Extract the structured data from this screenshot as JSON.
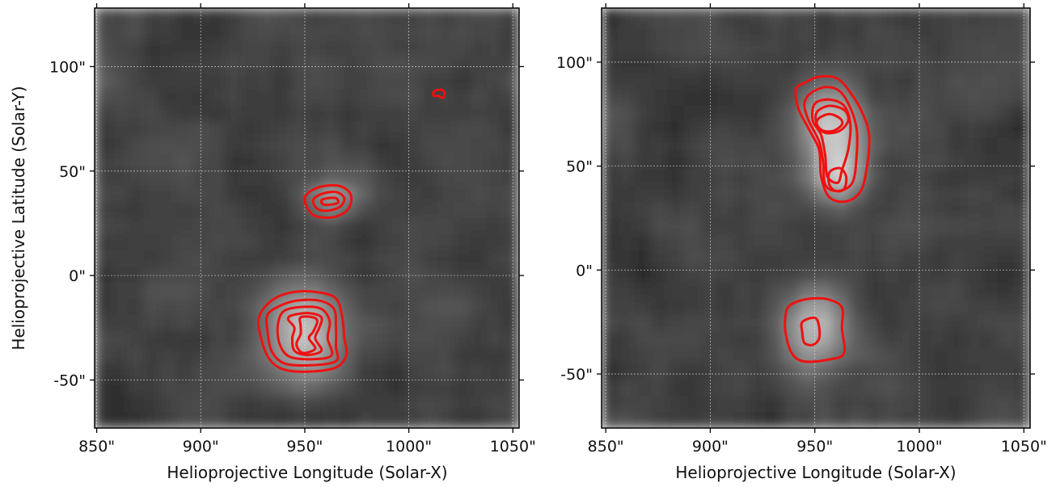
{
  "chart_data": [
    {
      "type": "heatmap",
      "xlabel": "Helioprojective Longitude (Solar-X)",
      "ylabel": "Helioprojective Latitude (Solar-Y)",
      "xlim": [
        849,
        1053
      ],
      "ylim": [
        -73,
        128
      ],
      "x_ticks": [
        850,
        900,
        950,
        1000,
        1050
      ],
      "y_ticks": [
        -50,
        0,
        50,
        100
      ],
      "x_tick_labels": [
        "850\"",
        "900\"",
        "950\"",
        "1000\"",
        "1050\""
      ],
      "y_tick_labels": [
        "-50\"",
        "0\"",
        "50\"",
        "100\""
      ],
      "grid": true,
      "colormap": "gray",
      "contour_color": "#ee1111",
      "sources": [
        {
          "x": 950,
          "y": -27,
          "sx": 13,
          "sy": 16,
          "peak": 1.0
        },
        {
          "x": 962,
          "y": 37,
          "sx": 9,
          "sy": 6,
          "peak": 0.75
        }
      ],
      "contours": [
        [
          [
            934,
            -12
          ],
          [
            944,
            -8
          ],
          [
            956,
            -8
          ],
          [
            965,
            -11
          ],
          [
            968,
            -20
          ],
          [
            969,
            -30
          ],
          [
            970,
            -38
          ],
          [
            965,
            -44
          ],
          [
            952,
            -46
          ],
          [
            940,
            -45
          ],
          [
            933,
            -40
          ],
          [
            929,
            -30
          ],
          [
            928,
            -20
          ]
        ],
        [
          [
            937,
            -15
          ],
          [
            946,
            -12
          ],
          [
            957,
            -12
          ],
          [
            964,
            -16
          ],
          [
            965,
            -25
          ],
          [
            965,
            -34
          ],
          [
            965,
            -41
          ],
          [
            952,
            -43
          ],
          [
            940,
            -42
          ],
          [
            934,
            -36
          ],
          [
            932,
            -26
          ],
          [
            932,
            -19
          ]
        ],
        [
          [
            940,
            -17
          ],
          [
            949,
            -15
          ],
          [
            958,
            -16
          ],
          [
            962,
            -22
          ],
          [
            961,
            -30
          ],
          [
            963,
            -38
          ],
          [
            955,
            -40
          ],
          [
            943,
            -39
          ],
          [
            938,
            -33
          ],
          [
            937,
            -24
          ]
        ],
        [
          [
            944,
            -19
          ],
          [
            952,
            -18
          ],
          [
            958,
            -20
          ],
          [
            957,
            -25
          ],
          [
            955,
            -30
          ],
          [
            958,
            -36
          ],
          [
            951,
            -38
          ],
          [
            945,
            -36
          ],
          [
            944,
            -30
          ],
          [
            945,
            -25
          ],
          [
            942,
            -21
          ]
        ],
        [
          [
            948,
            -20
          ],
          [
            954,
            -20
          ],
          [
            956,
            -22
          ],
          [
            954,
            -27
          ],
          [
            952,
            -30
          ],
          [
            955,
            -35
          ],
          [
            949,
            -37
          ],
          [
            946,
            -33
          ],
          [
            948,
            -28
          ],
          [
            948,
            -24
          ]
        ],
        [
          [
            950,
            37
          ],
          [
            956,
            42
          ],
          [
            966,
            43
          ],
          [
            972,
            39
          ],
          [
            971,
            32
          ],
          [
            964,
            28
          ],
          [
            954,
            29
          ]
        ],
        [
          [
            954,
            36
          ],
          [
            958,
            39
          ],
          [
            965,
            40
          ],
          [
            969,
            37
          ],
          [
            967,
            33
          ],
          [
            961,
            31
          ],
          [
            956,
            32
          ]
        ],
        [
          [
            958,
            36
          ],
          [
            961,
            37
          ],
          [
            965,
            37
          ],
          [
            966,
            35
          ],
          [
            963,
            34
          ],
          [
            959,
            34
          ]
        ],
        [
          [
            1012,
            88
          ],
          [
            1015,
            89
          ],
          [
            1017,
            88
          ],
          [
            1017,
            86
          ],
          [
            1016,
            85
          ],
          [
            1014,
            86
          ],
          [
            1012,
            86
          ]
        ]
      ]
    },
    {
      "type": "heatmap",
      "xlabel": "Helioprojective Longitude (Solar-X)",
      "ylabel": "",
      "xlim": [
        848,
        1053
      ],
      "ylim": [
        -76,
        126
      ],
      "x_ticks": [
        850,
        900,
        950,
        1000,
        1050
      ],
      "y_ticks": [
        -50,
        0,
        50,
        100
      ],
      "x_tick_labels": [
        "850\"",
        "900\"",
        "950\"",
        "1000\"",
        "1050\""
      ],
      "y_tick_labels": [
        "-50\"",
        "0\"",
        "50\"",
        "100\""
      ],
      "grid": true,
      "colormap": "gray",
      "contour_color": "#ee1111",
      "sources": [
        {
          "x": 958,
          "y": 70,
          "sx": 10,
          "sy": 12,
          "peak": 1.0
        },
        {
          "x": 961,
          "y": 45,
          "sx": 9,
          "sy": 10,
          "peak": 0.9
        },
        {
          "x": 950,
          "y": -28,
          "sx": 11,
          "sy": 13,
          "peak": 0.85
        }
      ],
      "contours": [
        [
          [
            945,
            90
          ],
          [
            952,
            93
          ],
          [
            961,
            92
          ],
          [
            968,
            84
          ],
          [
            973,
            75
          ],
          [
            976,
            65
          ],
          [
            975,
            50
          ],
          [
            972,
            38
          ],
          [
            965,
            33
          ],
          [
            957,
            35
          ],
          [
            953,
            45
          ],
          [
            952,
            58
          ],
          [
            947,
            68
          ],
          [
            942,
            78
          ],
          [
            941,
            87
          ]
        ],
        [
          [
            948,
            85
          ],
          [
            955,
            88
          ],
          [
            962,
            86
          ],
          [
            967,
            78
          ],
          [
            970,
            68
          ],
          [
            970,
            55
          ],
          [
            968,
            42
          ],
          [
            961,
            38
          ],
          [
            955,
            41
          ],
          [
            954,
            52
          ],
          [
            952,
            62
          ],
          [
            947,
            72
          ],
          [
            945,
            80
          ]
        ],
        [
          [
            950,
            80
          ],
          [
            957,
            82
          ],
          [
            964,
            79
          ],
          [
            967,
            70
          ],
          [
            966,
            58
          ],
          [
            963,
            48
          ],
          [
            961,
            42
          ],
          [
            956,
            45
          ],
          [
            955,
            55
          ],
          [
            953,
            65
          ],
          [
            949,
            72
          ]
        ],
        [
          [
            951,
            76
          ],
          [
            957,
            79
          ],
          [
            964,
            77
          ],
          [
            966,
            72
          ],
          [
            962,
            67
          ],
          [
            955,
            66
          ],
          [
            951,
            70
          ]
        ],
        [
          [
            952,
            73
          ],
          [
            957,
            75
          ],
          [
            962,
            73
          ],
          [
            963,
            70
          ],
          [
            959,
            67
          ],
          [
            954,
            67
          ],
          [
            951,
            70
          ]
        ],
        [
          [
            957,
            47
          ],
          [
            962,
            49
          ],
          [
            965,
            45
          ],
          [
            964,
            39
          ],
          [
            960,
            38
          ],
          [
            957,
            41
          ]
        ],
        [
          [
            938,
            -17
          ],
          [
            946,
            -14
          ],
          [
            956,
            -14
          ],
          [
            963,
            -18
          ],
          [
            963,
            -28
          ],
          [
            964,
            -40
          ],
          [
            957,
            -43
          ],
          [
            945,
            -44
          ],
          [
            939,
            -40
          ],
          [
            936,
            -30
          ],
          [
            936,
            -22
          ]
        ],
        [
          [
            944,
            -25
          ],
          [
            950,
            -23
          ],
          [
            952,
            -27
          ],
          [
            952,
            -33
          ],
          [
            949,
            -36
          ],
          [
            945,
            -35
          ],
          [
            944,
            -30
          ]
        ]
      ]
    }
  ]
}
